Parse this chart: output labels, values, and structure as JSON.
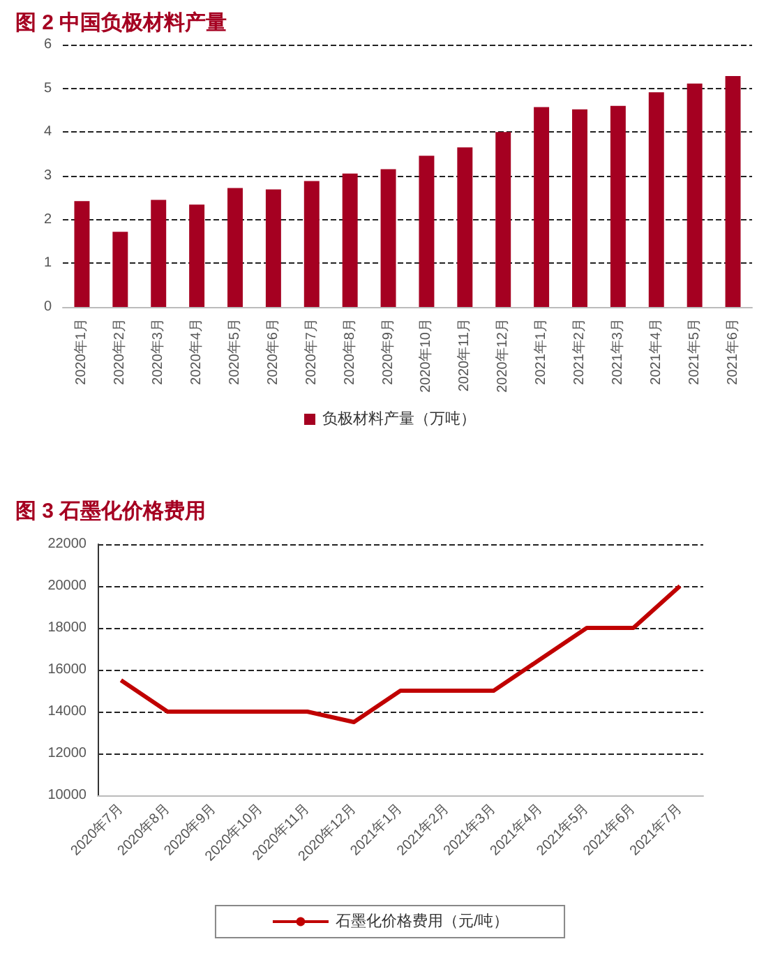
{
  "chart_data": [
    {
      "type": "bar",
      "title": "图 2 中国负极材料产量",
      "categories": [
        "2020年1月",
        "2020年2月",
        "2020年3月",
        "2020年4月",
        "2020年5月",
        "2020年6月",
        "2020年7月",
        "2020年8月",
        "2020年9月",
        "2020年10月",
        "2020年11月",
        "2020年12月",
        "2021年1月",
        "2021年2月",
        "2021年3月",
        "2021年4月",
        "2021年5月",
        "2021年6月"
      ],
      "series": [
        {
          "name": "负极材料产量（万吨）",
          "color": "#a50021",
          "values": [
            2.42,
            1.72,
            2.45,
            2.34,
            2.72,
            2.69,
            2.88,
            3.05,
            3.15,
            3.46,
            3.65,
            4.0,
            4.57,
            4.52,
            4.6,
            4.91,
            5.11,
            5.28
          ]
        }
      ],
      "ylim": [
        0,
        6
      ],
      "yticks": [
        0,
        1,
        2,
        3,
        4,
        5,
        6
      ],
      "grid": "y",
      "legend": "bottom"
    },
    {
      "type": "line",
      "title": "图 3 石墨化价格费用",
      "categories": [
        "2020年7月",
        "2020年8月",
        "2020年9月",
        "2020年10月",
        "2020年11月",
        "2020年12月",
        "2021年1月",
        "2021年2月",
        "2021年3月",
        "2021年4月",
        "2021年5月",
        "2021年6月",
        "2021年7月"
      ],
      "series": [
        {
          "name": "石墨化价格费用（元/吨）",
          "color": "#c00000",
          "values": [
            15500,
            14000,
            14000,
            14000,
            14000,
            13500,
            15000,
            15000,
            15000,
            16500,
            18000,
            18000,
            20000
          ]
        }
      ],
      "ylim": [
        10000,
        22000
      ],
      "yticks": [
        10000,
        12000,
        14000,
        16000,
        18000,
        20000,
        22000
      ],
      "grid": "y",
      "legend": "bottom",
      "marker": "none",
      "line_style": "solid"
    }
  ]
}
